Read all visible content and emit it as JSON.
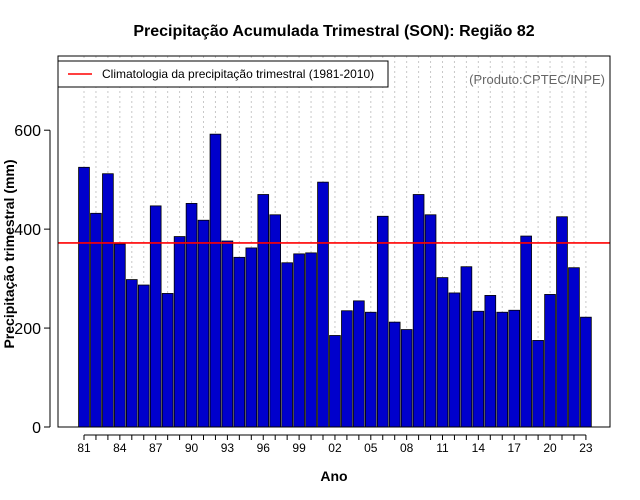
{
  "chart_data": {
    "type": "bar",
    "title": "Precipitação Acumulada Trimestral (SON): Região 82",
    "xlabel": "Ano",
    "ylabel": "Precipitação trimestral (mm)",
    "ylim": [
      0,
      750
    ],
    "yticks": [
      "0",
      "200",
      "400",
      "600"
    ],
    "ytick_values": [
      0,
      200,
      400,
      600
    ],
    "categories": [
      "1981",
      "1982",
      "1983",
      "1984",
      "1985",
      "1986",
      "1987",
      "1988",
      "1989",
      "1990",
      "1991",
      "1992",
      "1993",
      "1994",
      "1995",
      "1996",
      "1997",
      "1998",
      "1999",
      "2000",
      "2001",
      "2002",
      "2003",
      "2004",
      "2005",
      "2006",
      "2007",
      "2008",
      "2009",
      "2010",
      "2011",
      "2012",
      "2013",
      "2014",
      "2015",
      "2016",
      "2017",
      "2018",
      "2019",
      "2020",
      "2021",
      "2022",
      "2023"
    ],
    "values": [
      525,
      432,
      512,
      370,
      298,
      287,
      447,
      270,
      385,
      452,
      418,
      592,
      376,
      343,
      362,
      470,
      429,
      332,
      350,
      352,
      495,
      185,
      235,
      255,
      232,
      426,
      212,
      197,
      470,
      429,
      302,
      271,
      324,
      234,
      266,
      232,
      236,
      386,
      175,
      268,
      425,
      322,
      222
    ],
    "xtick_labels": [
      "81",
      "84",
      "87",
      "90",
      "93",
      "96",
      "99",
      "02",
      "05",
      "08",
      "11",
      "14",
      "17",
      "20",
      "23"
    ],
    "xtick_indices": [
      0,
      3,
      6,
      9,
      12,
      15,
      18,
      21,
      24,
      27,
      30,
      33,
      36,
      39,
      42
    ],
    "climatology_value": 372,
    "legend": {
      "label": "Climatologia da precipitação trimestral (1981-2010)",
      "position": "top-left"
    },
    "credit": "(Produto:CPTEC/INPE)",
    "colors": {
      "bar": "#0000cc",
      "climatology": "#ff0000",
      "grid": "#c8c8c8"
    }
  }
}
